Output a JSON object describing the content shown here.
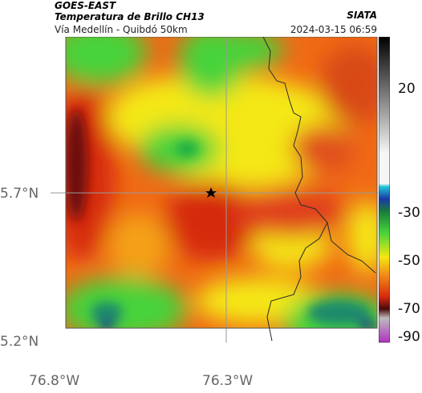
{
  "header": {
    "satellite": "GOES-EAST",
    "product": "Temperatura de Brillo CH13",
    "region": "Vía Medellín - Quibdó 50km",
    "organization": "SIATA",
    "timestamp": "2024-03-15 06:59"
  },
  "axes": {
    "y_ticks": [
      "5.7°N",
      "5.2°N"
    ],
    "x_ticks": [
      "76.8°W",
      "76.3°W"
    ]
  },
  "colorbar": {
    "ticks": [
      "20",
      "-30",
      "-50",
      "-70",
      "-90"
    ]
  },
  "map": {
    "marker": "star",
    "colors": {
      "red": "#d62a10",
      "orange": "#f26a17",
      "yellow": "#f4e812",
      "green": "#46d33a",
      "teal": "#1a8a6c",
      "darkred": "#6a0e0e"
    }
  }
}
